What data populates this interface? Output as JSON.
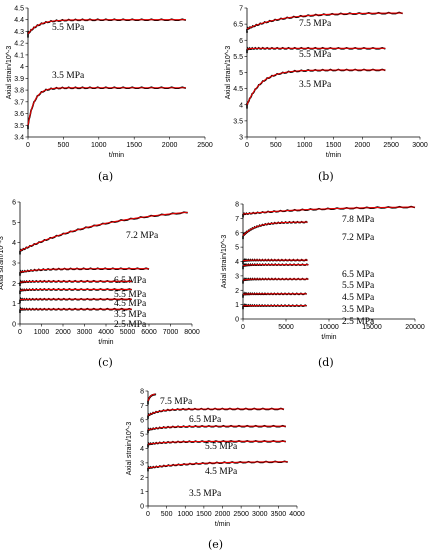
{
  "figure": {
    "panel_labels": [
      "(a)",
      "(b)",
      "(c)",
      "(d)",
      "(e)"
    ]
  },
  "colors": {
    "model": "#e30000",
    "measured": "#000000",
    "axis": "#000000"
  },
  "chart_data": [
    {
      "type": "line",
      "panel": "(a)",
      "xlabel": "t/min",
      "ylabel": "Axial strain/10^-3",
      "xlim": [
        0,
        2500
      ],
      "ylim": [
        3.4,
        4.5
      ],
      "xticks": [
        0,
        500,
        1000,
        1500,
        2000,
        2500
      ],
      "yticks": [
        3.4,
        3.5,
        3.6,
        3.7,
        3.8,
        3.9,
        4.0,
        4.1,
        4.2,
        4.3,
        4.4,
        4.5
      ],
      "grid": false,
      "series": [
        {
          "name": "5.5 MPa",
          "t_end": 2230,
          "s0": 4.28,
          "s_inf": 4.4,
          "tau": 150
        },
        {
          "name": "3.5 MPa",
          "t_end": 2230,
          "s0": 3.5,
          "s_inf": 3.82,
          "tau": 90
        }
      ]
    },
    {
      "type": "line",
      "panel": "(b)",
      "xlabel": "t/min",
      "ylabel": "Axial strain/10^-3",
      "xlim": [
        0,
        3000
      ],
      "ylim": [
        3.0,
        7.0
      ],
      "xticks": [
        0,
        500,
        1000,
        1500,
        2000,
        2500,
        3000
      ],
      "yticks": [
        3.0,
        3.5,
        4.0,
        4.5,
        5.0,
        5.5,
        6.0,
        6.5,
        7.0
      ],
      "grid": false,
      "series": [
        {
          "name": "7.5 MPa",
          "t_end": 2700,
          "s0": 6.35,
          "s_inf": 6.85,
          "tau": 600
        },
        {
          "name": "5.5 MPa",
          "t_end": 2400,
          "s0": 5.72,
          "s_inf": 5.75,
          "tau": 50
        },
        {
          "name": "3.5 MPa",
          "t_end": 2400,
          "s0": 4.0,
          "s_inf": 5.08,
          "tau": 250
        }
      ]
    },
    {
      "type": "line",
      "panel": "(c)",
      "xlabel": "t/min",
      "ylabel": "Axial strain/10^-3",
      "xlim": [
        0,
        8000
      ],
      "ylim": [
        0,
        6
      ],
      "xticks": [
        0,
        1000,
        2000,
        3000,
        4000,
        5000,
        6000,
        7000,
        8000
      ],
      "yticks": [
        0,
        1,
        2,
        3,
        4,
        5,
        6
      ],
      "grid": false,
      "series": [
        {
          "name": "7.2 MPa",
          "t_end": 7800,
          "s0": 3.6,
          "s_inf": 5.9,
          "tau": 4500
        },
        {
          "name": "6.5 MPa",
          "t_end": 6000,
          "s0": 2.55,
          "s_inf": 2.72,
          "tau": 800
        },
        {
          "name": "5.5 MPa",
          "t_end": 5200,
          "s0": 2.05,
          "s_inf": 2.1,
          "tau": 300
        },
        {
          "name": "4.5 MPa",
          "t_end": 5200,
          "s0": 1.65,
          "s_inf": 1.7,
          "tau": 300
        },
        {
          "name": "3.5 MPa",
          "t_end": 5200,
          "s0": 1.2,
          "s_inf": 1.22,
          "tau": 300
        },
        {
          "name": "2.5 MPa",
          "t_end": 5200,
          "s0": 0.72,
          "s_inf": 0.73,
          "tau": 300
        }
      ]
    },
    {
      "type": "line",
      "panel": "(d)",
      "xlabel": "t/min",
      "ylabel": "Axial strain/10^-3",
      "xlim": [
        0,
        20000
      ],
      "ylim": [
        0,
        8
      ],
      "xticks": [
        0,
        5000,
        10000,
        15000,
        20000
      ],
      "yticks": [
        0,
        1,
        2,
        3,
        4,
        5,
        6,
        7,
        8
      ],
      "grid": false,
      "series": [
        {
          "name": "7.8 MPa",
          "t_end": 20000,
          "s0": 7.3,
          "s_inf": 7.85,
          "tau": 9000
        },
        {
          "name": "7.2 MPa",
          "t_end": 7500,
          "s0": 5.8,
          "s_inf": 6.75,
          "tau": 1500
        },
        {
          "name": "6.5 MPa",
          "t_end": 7500,
          "s0": 4.05,
          "s_inf": 4.1,
          "tau": 500
        },
        {
          "name": "5.5 MPa",
          "t_end": 7600,
          "s0": 3.7,
          "s_inf": 3.78,
          "tau": 500
        },
        {
          "name": "4.5 MPa",
          "t_end": 7600,
          "s0": 2.7,
          "s_inf": 2.78,
          "tau": 500
        },
        {
          "name": "3.5 MPa",
          "t_end": 7400,
          "s0": 1.72,
          "s_inf": 1.75,
          "tau": 500
        },
        {
          "name": "2.5 MPa",
          "t_end": 7400,
          "s0": 0.92,
          "s_inf": 0.93,
          "tau": 500
        }
      ]
    },
    {
      "type": "line",
      "panel": "(e)",
      "xlabel": "t/min",
      "ylabel": "Axial strain/10^-3",
      "xlim": [
        0,
        4000
      ],
      "ylim": [
        0,
        8
      ],
      "xticks": [
        0,
        500,
        1000,
        1500,
        2000,
        2500,
        3000,
        3500,
        4000
      ],
      "yticks": [
        0,
        1,
        2,
        3,
        4,
        5,
        6,
        7,
        8
      ],
      "grid": false,
      "series": [
        {
          "name": "7.5 MPa",
          "t_end": 200,
          "s0": 7.3,
          "s_inf": 7.8,
          "tau": 60
        },
        {
          "name": "6.5 MPa",
          "t_end": 3650,
          "s0": 6.3,
          "s_inf": 6.75,
          "tau": 300
        },
        {
          "name": "5.5 MPa",
          "t_end": 3700,
          "s0": 5.3,
          "s_inf": 5.55,
          "tau": 400
        },
        {
          "name": "4.5 MPa",
          "t_end": 3700,
          "s0": 4.3,
          "s_inf": 4.5,
          "tau": 500
        },
        {
          "name": "3.5 MPa",
          "t_end": 3750,
          "s0": 2.65,
          "s_inf": 3.1,
          "tau": 1200
        }
      ]
    }
  ]
}
